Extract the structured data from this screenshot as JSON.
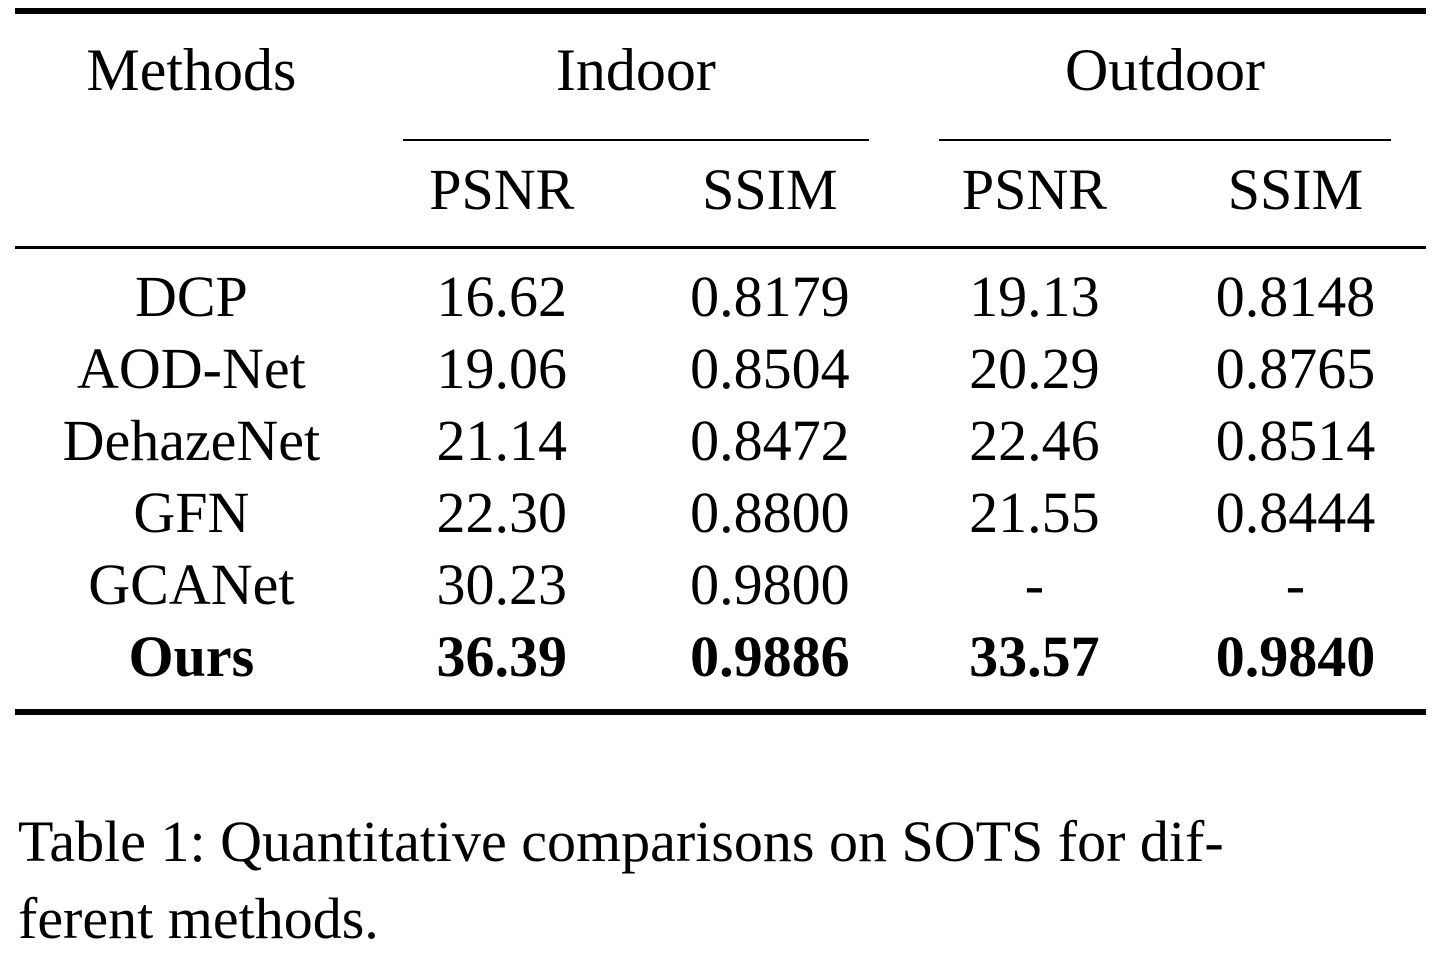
{
  "table": {
    "header": {
      "methods_label": "Methods",
      "groups": [
        {
          "label": "Indoor",
          "subcolumns": [
            "PSNR",
            "SSIM"
          ]
        },
        {
          "label": "Outdoor",
          "subcolumns": [
            "PSNR",
            "SSIM"
          ]
        }
      ]
    },
    "rows": [
      {
        "method": "DCP",
        "values": [
          "16.62",
          "0.8179",
          "19.13",
          "0.8148"
        ],
        "bold": false
      },
      {
        "method": "AOD-Net",
        "values": [
          "19.06",
          "0.8504",
          "20.29",
          "0.8765"
        ],
        "bold": false
      },
      {
        "method": "DehazeNet",
        "values": [
          "21.14",
          "0.8472",
          "22.46",
          "0.8514"
        ],
        "bold": false
      },
      {
        "method": "GFN",
        "values": [
          "22.30",
          "0.8800",
          "21.55",
          "0.8444"
        ],
        "bold": false
      },
      {
        "method": "GCANet",
        "values": [
          "30.23",
          "0.9800",
          "-",
          "-"
        ],
        "bold": false
      },
      {
        "method": "Ours",
        "values": [
          "36.39",
          "0.9886",
          "33.57",
          "0.9840"
        ],
        "bold": true
      }
    ]
  },
  "caption": {
    "line1": "Table 1: Quantitative comparisons on SOTS for dif-",
    "line2": "ferent methods."
  },
  "colors": {
    "text": "#000000",
    "background": "#ffffff",
    "rule": "#000000"
  }
}
